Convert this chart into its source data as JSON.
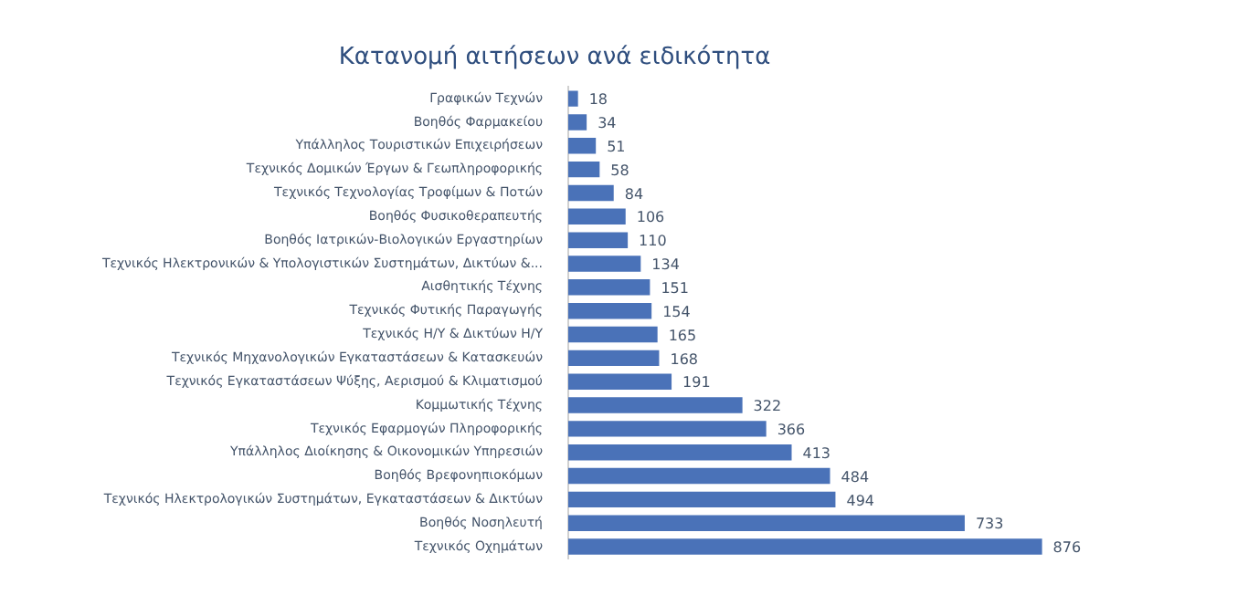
{
  "chart_data": {
    "type": "bar",
    "orientation": "horizontal",
    "title": "Κατανομή αιτήσεων ανά ειδικότητα",
    "categories": [
      "Γραφικών Τεχνών",
      "Βοηθός Φαρμακείου",
      "Υπάλληλος Τουριστικών Επιχειρήσεων",
      "Τεχνικός Δομικών Έργων & Γεωπληροφορικής",
      "Τεχνικός Τεχνολογίας Τροφίμων & Ποτών",
      "Βοηθός Φυσικοθεραπευτής",
      "Βοηθός Ιατρικών-Βιολογικών Εργαστηρίων",
      "Τεχνικός Ηλεκτρονικών & Υπολογιστικών Συστημάτων, Δικτύων &...",
      "Αισθητικής Τέχνης",
      "Τεχνικός Φυτικής Παραγωγής",
      "Τεχνικός Η/Υ & Δικτύων Η/Υ",
      "Τεχνικός Μηχανολογικών Εγκαταστάσεων & Κατασκευών",
      "Τεχνικός Εγκαταστάσεων Ψύξης, Αερισμού & Κλιματισμού",
      "Κομμωτικής Τέχνης",
      "Τεχνικός Εφαρμογών Πληροφορικής",
      "Υπάλληλος Διοίκησης & Οικονομικών Υπηρεσιών",
      "Βοηθός Βρεφονηπιοκόμων",
      "Τεχνικός Ηλεκτρολογικών Συστημάτων, Εγκαταστάσεων & Δικτύων",
      "Βοηθός Νοσηλευτή",
      "Τεχνικός Οχημάτων"
    ],
    "values": [
      18,
      34,
      51,
      58,
      84,
      106,
      110,
      134,
      151,
      154,
      165,
      168,
      191,
      322,
      366,
      413,
      484,
      494,
      733,
      876
    ],
    "color": "#4a72b8",
    "data_labels": true,
    "grid": false,
    "legend": false
  }
}
